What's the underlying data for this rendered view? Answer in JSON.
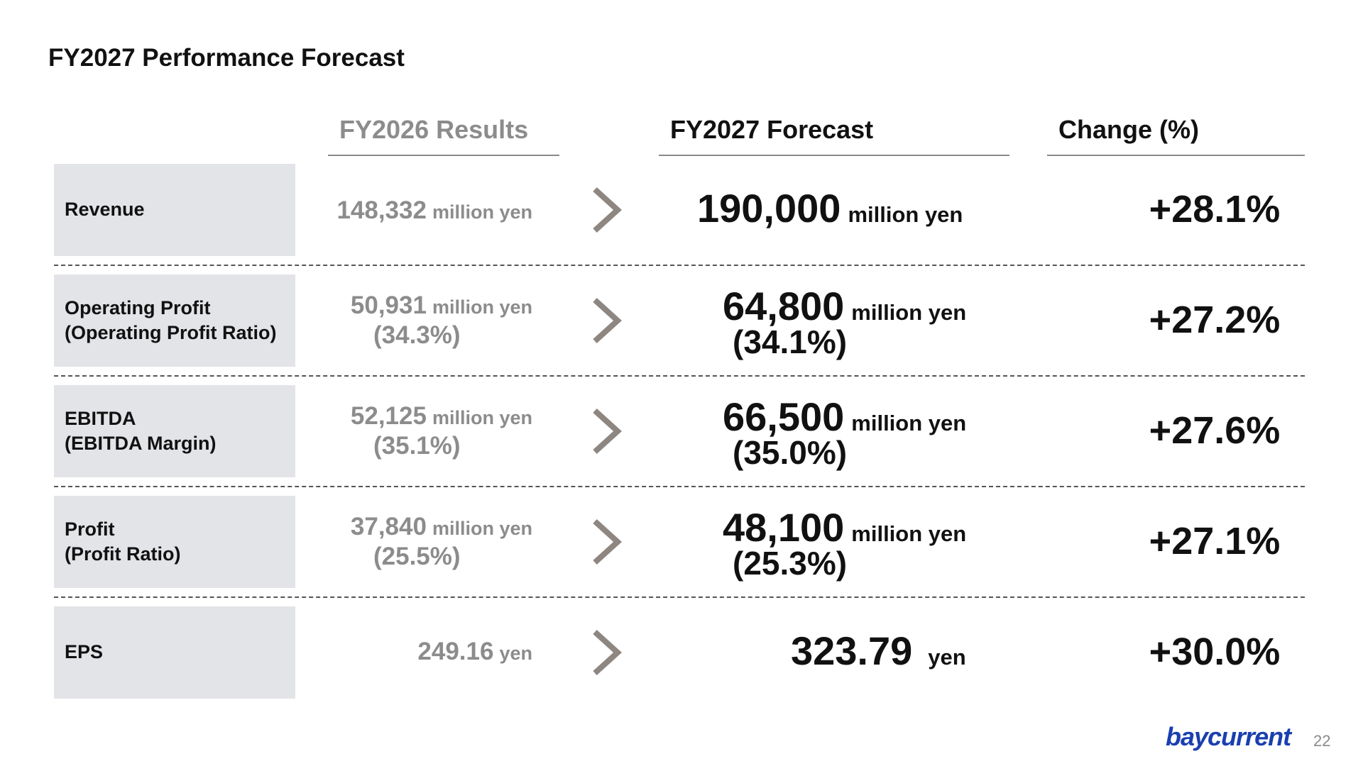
{
  "title": "FY2027 Performance Forecast",
  "headers": {
    "prev": "FY2026 Results",
    "forecast": "FY2027 Forecast",
    "change": "Change (%)"
  },
  "rows": [
    {
      "label_line1": "Revenue",
      "label_line2": "",
      "prev_value": "148,332",
      "prev_unit": "million yen",
      "prev_ratio": "",
      "fc_value": "190,000",
      "fc_unit": "million yen",
      "fc_ratio": "",
      "change": "+28.1%"
    },
    {
      "label_line1": "Operating Profit",
      "label_line2": "(Operating Profit Ratio)",
      "prev_value": "50,931",
      "prev_unit": "million yen",
      "prev_ratio": "(34.3%)",
      "fc_value": "64,800",
      "fc_unit": "million yen",
      "fc_ratio": "(34.1%)",
      "change": "+27.2%"
    },
    {
      "label_line1": "EBITDA",
      "label_line2": "(EBITDA Margin)",
      "prev_value": "52,125",
      "prev_unit": "million yen",
      "prev_ratio": "(35.1%)",
      "fc_value": "66,500",
      "fc_unit": "million yen",
      "fc_ratio": "(35.0%)",
      "change": "+27.6%"
    },
    {
      "label_line1": "Profit",
      "label_line2": "(Profit Ratio)",
      "prev_value": "37,840",
      "prev_unit": "million yen",
      "prev_ratio": "(25.5%)",
      "fc_value": "48,100",
      "fc_unit": "million yen",
      "fc_ratio": "(25.3%)",
      "change": "+27.1%"
    },
    {
      "label_line1": "EPS",
      "label_line2": "",
      "prev_value": "249.16",
      "prev_unit": "yen",
      "prev_ratio": "",
      "fc_value": "323.79",
      "fc_unit": "yen",
      "fc_ratio": "",
      "change": "+30.0%"
    }
  ],
  "footer": {
    "logo": "baycurrent",
    "page_number": "22"
  },
  "colors": {
    "label_bg": "#e3e4e8",
    "muted_text": "#8c8c8c",
    "arrow": "#8e8680",
    "logo": "#1a3fb0"
  }
}
